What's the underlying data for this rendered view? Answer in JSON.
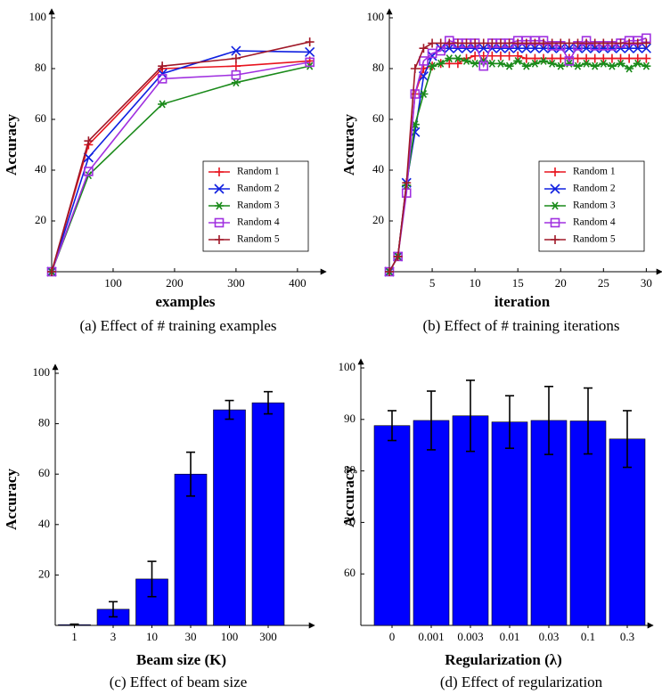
{
  "chart_data": [
    {
      "type": "line",
      "caption": "(a) Effect of # training examples",
      "xlabel": "examples",
      "ylabel": "Accuracy",
      "x": [
        0,
        60,
        180,
        300,
        420
      ],
      "xlim": [
        0,
        435
      ],
      "xticks": [
        100,
        200,
        300,
        400
      ],
      "ylim": [
        0,
        100
      ],
      "yticks": [
        20,
        40,
        60,
        80,
        100
      ],
      "legend": "lower right",
      "series": [
        {
          "name": "Random 1",
          "color": "#e8141e",
          "marker": "+",
          "values": [
            0,
            50,
            80,
            81,
            83
          ]
        },
        {
          "name": "Random 2",
          "color": "#1020e0",
          "marker": "x",
          "values": [
            0,
            45,
            78,
            87,
            86.5
          ]
        },
        {
          "name": "Random 3",
          "color": "#1a8a1a",
          "marker": "*",
          "values": [
            0,
            38,
            66,
            74.5,
            81
          ]
        },
        {
          "name": "Random 4",
          "color": "#a030e0",
          "marker": "square",
          "values": [
            0,
            39.5,
            76,
            77.5,
            82.5
          ]
        },
        {
          "name": "Random 5",
          "color": "#a01828",
          "marker": "+",
          "values": [
            0,
            51.5,
            81,
            84,
            90.5
          ]
        }
      ]
    },
    {
      "type": "line",
      "caption": "(b) Effect of # training iterations",
      "xlabel": "iteration",
      "ylabel": "Accuracy",
      "x": [
        0,
        1,
        2,
        3,
        4,
        5,
        6,
        7,
        8,
        9,
        10,
        11,
        12,
        13,
        14,
        15,
        16,
        17,
        18,
        19,
        20,
        21,
        22,
        23,
        24,
        25,
        26,
        27,
        28,
        29,
        30
      ],
      "xlim": [
        0,
        31
      ],
      "xticks": [
        5,
        10,
        15,
        20,
        25,
        30
      ],
      "ylim": [
        0,
        100
      ],
      "yticks": [
        20,
        40,
        60,
        80,
        100
      ],
      "legend": "lower right",
      "series": [
        {
          "name": "Random 1",
          "color": "#e8141e",
          "marker": "+",
          "values": [
            0,
            6,
            34,
            70,
            80,
            81,
            82,
            82,
            82,
            84,
            85,
            85,
            85,
            85,
            85,
            85,
            84,
            84,
            84,
            84,
            84,
            84,
            84,
            84,
            84,
            84,
            84,
            84,
            84,
            84,
            84
          ]
        },
        {
          "name": "Random 2",
          "color": "#1020e0",
          "marker": "x",
          "values": [
            0,
            6,
            35,
            55,
            77,
            85,
            88,
            88,
            88,
            88,
            88,
            88,
            88,
            88,
            88,
            88,
            88,
            88,
            88,
            88,
            88,
            88,
            88,
            88,
            88,
            88,
            88,
            88,
            88,
            88,
            88
          ]
        },
        {
          "name": "Random 3",
          "color": "#1a8a1a",
          "marker": "*",
          "values": [
            0,
            6,
            34,
            58,
            70,
            81,
            82,
            84,
            84,
            83,
            82,
            83,
            82,
            82,
            81,
            83,
            81,
            82,
            83,
            82,
            81,
            82,
            81,
            82,
            81,
            82,
            81,
            82,
            80,
            82,
            81
          ]
        },
        {
          "name": "Random 4",
          "color": "#a030e0",
          "marker": "square",
          "values": [
            0,
            6,
            31,
            70,
            83,
            86,
            87,
            91,
            90,
            90,
            90,
            81,
            90,
            90,
            90,
            91,
            91,
            91,
            91,
            89,
            89,
            83,
            89,
            91,
            89,
            89,
            89,
            90,
            91,
            91,
            92
          ]
        },
        {
          "name": "Random 5",
          "color": "#a01828",
          "marker": "+",
          "values": [
            0,
            6,
            35,
            80,
            88,
            90,
            90,
            90,
            90,
            90,
            90,
            90,
            90,
            90,
            90,
            90,
            90,
            90,
            90,
            90,
            90,
            90,
            90,
            90,
            90,
            90,
            90,
            90,
            90,
            90,
            90
          ]
        }
      ]
    },
    {
      "type": "bar",
      "caption": "(c) Effect of beam size",
      "xlabel": "Beam size (K)",
      "ylabel": "Accuracy",
      "categories": [
        "1",
        "3",
        "10",
        "30",
        "100",
        "300"
      ],
      "values": [
        0.3,
        6.4,
        18.4,
        60,
        85.5,
        88.3
      ],
      "errors": [
        0.2,
        3,
        7,
        8.7,
        3.7,
        4.4
      ],
      "color": "#0000ff",
      "ylim": [
        0,
        100
      ],
      "yticks": [
        20,
        40,
        60,
        80,
        100
      ]
    },
    {
      "type": "bar",
      "caption": "(d) Effect of regularization",
      "xlabel": "Regularization (λ)",
      "ylabel": "Accuracy",
      "categories": [
        "0",
        "0.001",
        "0.003",
        "0.01",
        "0.03",
        "0.1",
        "0.3"
      ],
      "values": [
        88.8,
        89.8,
        90.7,
        89.5,
        89.8,
        89.7,
        86.2
      ],
      "errors": [
        2.9,
        5.7,
        6.9,
        5.1,
        6.6,
        6.4,
        5.5
      ],
      "color": "#0000ff",
      "ylim": [
        50,
        100
      ],
      "yticks": [
        60,
        70,
        80,
        90,
        100
      ]
    }
  ]
}
